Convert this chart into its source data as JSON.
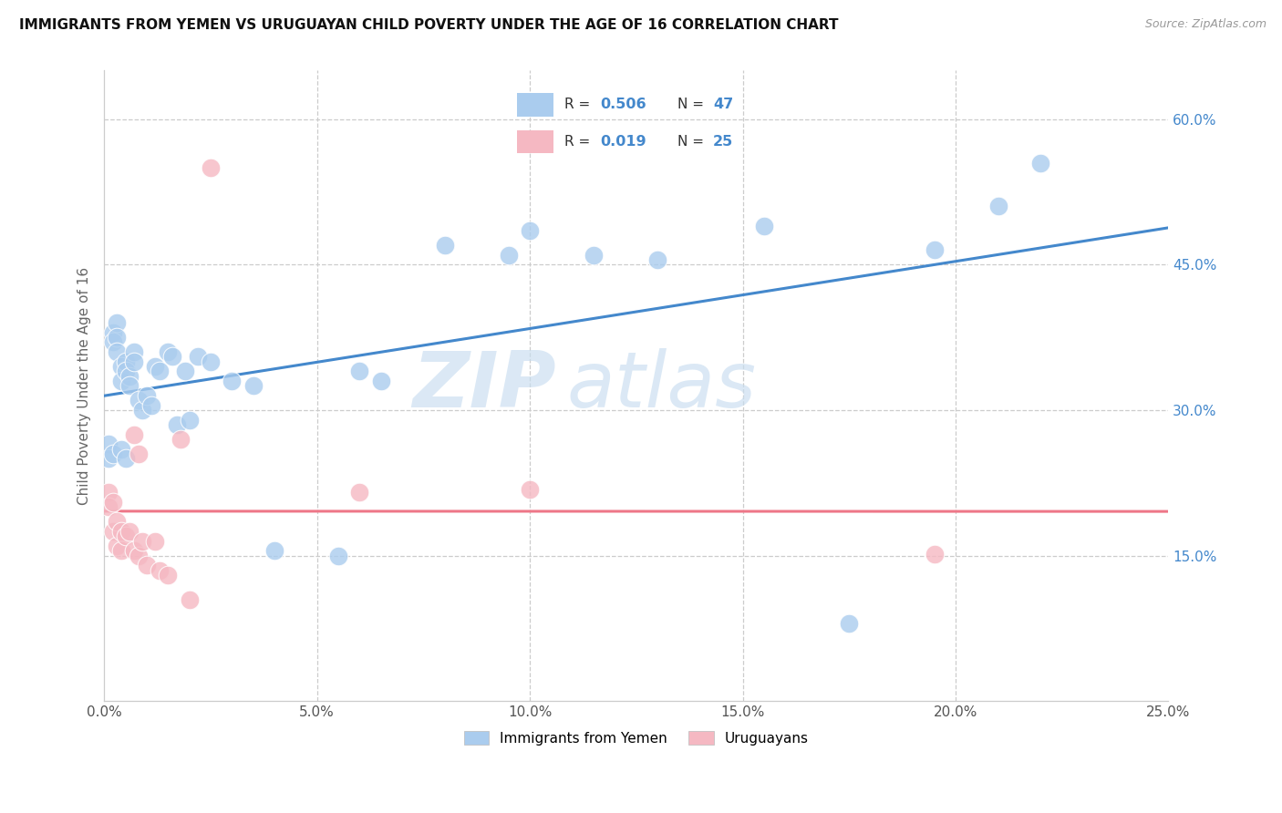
{
  "title": "IMMIGRANTS FROM YEMEN VS URUGUAYAN CHILD POVERTY UNDER THE AGE OF 16 CORRELATION CHART",
  "source": "Source: ZipAtlas.com",
  "ylabel": "Child Poverty Under the Age of 16",
  "xlim": [
    0.0,
    0.25
  ],
  "ylim": [
    0.0,
    0.65
  ],
  "xticks": [
    0.0,
    0.05,
    0.1,
    0.15,
    0.2,
    0.25
  ],
  "xticklabels": [
    "0.0%",
    "5.0%",
    "10.0%",
    "15.0%",
    "20.0%",
    "25.0%"
  ],
  "yticks": [
    0.15,
    0.3,
    0.45,
    0.6
  ],
  "yticklabels": [
    "15.0%",
    "30.0%",
    "45.0%",
    "60.0%"
  ],
  "blue_color": "#aaccee",
  "pink_color": "#f5b8c2",
  "blue_line_color": "#4488cc",
  "pink_line_color": "#ee7788",
  "legend_label_blue": "Immigrants from Yemen",
  "legend_label_pink": "Uruguayans",
  "watermark_zip": "ZIP",
  "watermark_atlas": "atlas",
  "blue_x": [
    0.001,
    0.001,
    0.002,
    0.002,
    0.002,
    0.003,
    0.003,
    0.003,
    0.004,
    0.004,
    0.004,
    0.005,
    0.005,
    0.005,
    0.006,
    0.006,
    0.007,
    0.007,
    0.008,
    0.009,
    0.01,
    0.011,
    0.012,
    0.013,
    0.015,
    0.016,
    0.017,
    0.019,
    0.02,
    0.022,
    0.025,
    0.03,
    0.035,
    0.04,
    0.055,
    0.06,
    0.065,
    0.08,
    0.095,
    0.1,
    0.115,
    0.13,
    0.155,
    0.175,
    0.195,
    0.21,
    0.22
  ],
  "blue_y": [
    0.265,
    0.25,
    0.38,
    0.37,
    0.255,
    0.39,
    0.375,
    0.36,
    0.345,
    0.33,
    0.26,
    0.35,
    0.34,
    0.25,
    0.335,
    0.325,
    0.36,
    0.35,
    0.31,
    0.3,
    0.315,
    0.305,
    0.345,
    0.34,
    0.36,
    0.355,
    0.285,
    0.34,
    0.29,
    0.355,
    0.35,
    0.33,
    0.325,
    0.155,
    0.15,
    0.34,
    0.33,
    0.47,
    0.46,
    0.485,
    0.46,
    0.455,
    0.49,
    0.08,
    0.465,
    0.51,
    0.555
  ],
  "pink_x": [
    0.001,
    0.001,
    0.002,
    0.002,
    0.003,
    0.003,
    0.004,
    0.004,
    0.005,
    0.006,
    0.007,
    0.007,
    0.008,
    0.008,
    0.009,
    0.01,
    0.012,
    0.013,
    0.015,
    0.018,
    0.02,
    0.025,
    0.06,
    0.1,
    0.195
  ],
  "pink_y": [
    0.215,
    0.2,
    0.205,
    0.175,
    0.185,
    0.16,
    0.175,
    0.155,
    0.17,
    0.175,
    0.155,
    0.275,
    0.15,
    0.255,
    0.165,
    0.14,
    0.165,
    0.135,
    0.13,
    0.27,
    0.105,
    0.55,
    0.215,
    0.218,
    0.152
  ]
}
